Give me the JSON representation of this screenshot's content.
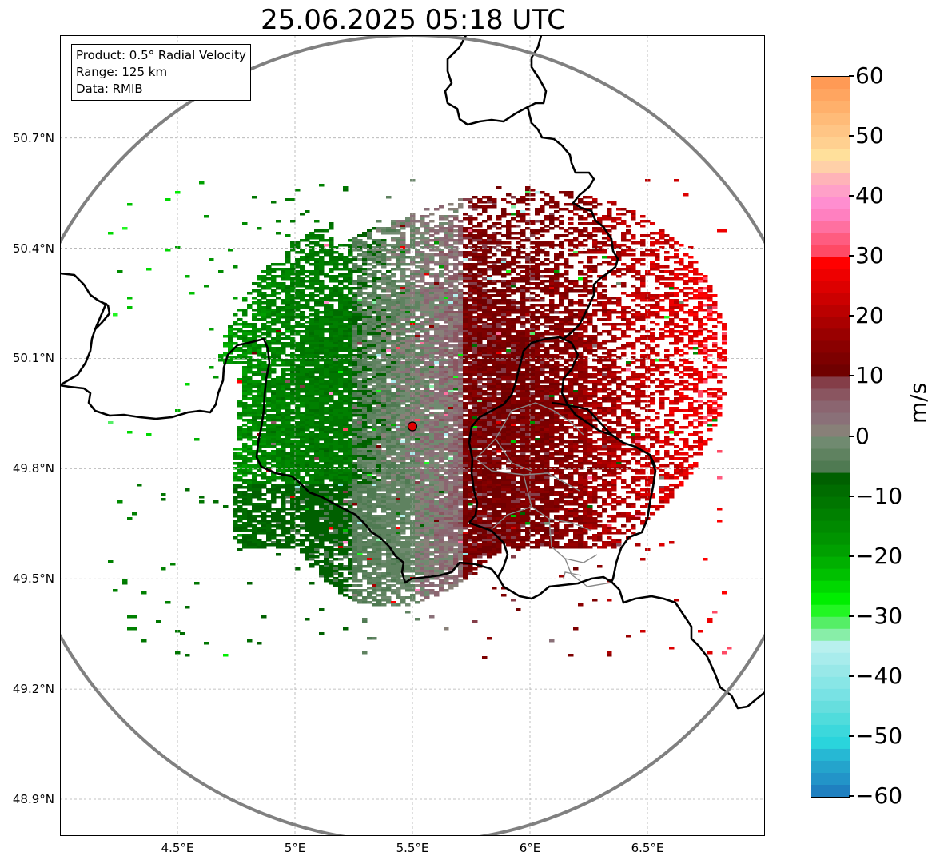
{
  "title": "25.06.2025 05:18 UTC",
  "info_box": {
    "product": "Product: 0.5° Radial Velocity",
    "range": "Range: 125 km",
    "data": "Data: RMIB"
  },
  "map": {
    "lon_min": 4.0,
    "lon_max": 7.0,
    "lat_min": 48.8,
    "lat_max": 50.98,
    "radar_site": {
      "lon": 5.5,
      "lat": 49.915
    },
    "range_ring_color": "#808080",
    "border_color": "#000000",
    "inner_border_color": "#888888",
    "lat_ticks": [
      {
        "value": 50.7,
        "label": "50.7°N"
      },
      {
        "value": 50.4,
        "label": "50.4°N"
      },
      {
        "value": 50.1,
        "label": "50.1°N"
      },
      {
        "value": 49.8,
        "label": "49.8°N"
      },
      {
        "value": 49.5,
        "label": "49.5°N"
      },
      {
        "value": 49.2,
        "label": "49.2°N"
      },
      {
        "value": 48.9,
        "label": "48.9°N"
      }
    ],
    "lon_ticks": [
      {
        "value": 4.5,
        "label": "4.5°E"
      },
      {
        "value": 5.0,
        "label": "5°E"
      },
      {
        "value": 5.5,
        "label": "5.5°E"
      },
      {
        "value": 6.0,
        "label": "6°E"
      },
      {
        "value": 6.5,
        "label": "6.5°E"
      }
    ]
  },
  "colorbar": {
    "unit": "m/s",
    "min": -60,
    "max": 60,
    "ticks": [
      {
        "value": 60,
        "label": "60"
      },
      {
        "value": 50,
        "label": "50"
      },
      {
        "value": 40,
        "label": "40"
      },
      {
        "value": 30,
        "label": "30"
      },
      {
        "value": 20,
        "label": "20"
      },
      {
        "value": 10,
        "label": "10"
      },
      {
        "value": 0,
        "label": "0"
      },
      {
        "value": -10,
        "label": "−10"
      },
      {
        "value": -20,
        "label": "−20"
      },
      {
        "value": -30,
        "label": "−30"
      },
      {
        "value": -40,
        "label": "−40"
      },
      {
        "value": -50,
        "label": "−50"
      },
      {
        "value": -60,
        "label": "−60"
      }
    ],
    "bins": [
      {
        "from": 58,
        "to": 60,
        "color": "#ff9a55"
      },
      {
        "from": 56,
        "to": 58,
        "color": "#ffa560"
      },
      {
        "from": 54,
        "to": 56,
        "color": "#ffb06b"
      },
      {
        "from": 52,
        "to": 54,
        "color": "#ffbb78"
      },
      {
        "from": 50,
        "to": 52,
        "color": "#ffc585"
      },
      {
        "from": 48,
        "to": 50,
        "color": "#ffd090"
      },
      {
        "from": 46,
        "to": 48,
        "color": "#ffe09b"
      },
      {
        "from": 44,
        "to": 46,
        "color": "#ffd0a8"
      },
      {
        "from": 42,
        "to": 44,
        "color": "#ffb3b8"
      },
      {
        "from": 40,
        "to": 42,
        "color": "#ffa0c8"
      },
      {
        "from": 38,
        "to": 40,
        "color": "#ff8ed0"
      },
      {
        "from": 36,
        "to": 38,
        "color": "#ff80c0"
      },
      {
        "from": 34,
        "to": 36,
        "color": "#ff70a0"
      },
      {
        "from": 32,
        "to": 34,
        "color": "#ff5c80"
      },
      {
        "from": 30,
        "to": 32,
        "color": "#ff4a65"
      },
      {
        "from": 28,
        "to": 30,
        "color": "#ff0000"
      },
      {
        "from": 26,
        "to": 28,
        "color": "#ee0000"
      },
      {
        "from": 24,
        "to": 26,
        "color": "#dd0000"
      },
      {
        "from": 22,
        "to": 24,
        "color": "#cc0000"
      },
      {
        "from": 20,
        "to": 22,
        "color": "#bb0000"
      },
      {
        "from": 18,
        "to": 20,
        "color": "#aa0000"
      },
      {
        "from": 16,
        "to": 18,
        "color": "#990000"
      },
      {
        "from": 14,
        "to": 16,
        "color": "#8a0000"
      },
      {
        "from": 12,
        "to": 14,
        "color": "#7d0000"
      },
      {
        "from": 10,
        "to": 12,
        "color": "#700000"
      },
      {
        "from": 8,
        "to": 10,
        "color": "#843d48"
      },
      {
        "from": 6,
        "to": 8,
        "color": "#8a5560"
      },
      {
        "from": 4,
        "to": 6,
        "color": "#8b6570"
      },
      {
        "from": 2,
        "to": 4,
        "color": "#8a7078"
      },
      {
        "from": 0,
        "to": 2,
        "color": "#888078"
      },
      {
        "from": -2,
        "to": 0,
        "color": "#708a70"
      },
      {
        "from": -4,
        "to": -2,
        "color": "#5f8260"
      },
      {
        "from": -6,
        "to": -4,
        "color": "#4f7a52"
      },
      {
        "from": -8,
        "to": -6,
        "color": "#006000"
      },
      {
        "from": -10,
        "to": -8,
        "color": "#006c00"
      },
      {
        "from": -12,
        "to": -10,
        "color": "#007600"
      },
      {
        "from": -14,
        "to": -12,
        "color": "#008000"
      },
      {
        "from": -16,
        "to": -14,
        "color": "#008a00"
      },
      {
        "from": -18,
        "to": -16,
        "color": "#009400"
      },
      {
        "from": -20,
        "to": -18,
        "color": "#00a000"
      },
      {
        "from": -22,
        "to": -20,
        "color": "#00b000"
      },
      {
        "from": -24,
        "to": -22,
        "color": "#00c000"
      },
      {
        "from": -26,
        "to": -24,
        "color": "#00d800"
      },
      {
        "from": -28,
        "to": -26,
        "color": "#00ee00"
      },
      {
        "from": -30,
        "to": -28,
        "color": "#22f622"
      },
      {
        "from": -32,
        "to": -30,
        "color": "#55ee66"
      },
      {
        "from": -34,
        "to": -32,
        "color": "#88eea8"
      },
      {
        "from": -36,
        "to": -34,
        "color": "#b8f0ee"
      },
      {
        "from": -38,
        "to": -36,
        "color": "#a8ecec"
      },
      {
        "from": -40,
        "to": -38,
        "color": "#98e8e8"
      },
      {
        "from": -42,
        "to": -40,
        "color": "#88e6e6"
      },
      {
        "from": -44,
        "to": -42,
        "color": "#78e2e4"
      },
      {
        "from": -46,
        "to": -44,
        "color": "#66dede"
      },
      {
        "from": -48,
        "to": -46,
        "color": "#50dcdc"
      },
      {
        "from": -50,
        "to": -48,
        "color": "#3cd8dc"
      },
      {
        "from": -52,
        "to": -50,
        "color": "#2ad4dc"
      },
      {
        "from": -54,
        "to": -52,
        "color": "#26b8d4"
      },
      {
        "from": -56,
        "to": -54,
        "color": "#24a4cc"
      },
      {
        "from": -58,
        "to": -56,
        "color": "#2294c8"
      },
      {
        "from": -60,
        "to": -58,
        "color": "#1f80c0"
      }
    ]
  }
}
